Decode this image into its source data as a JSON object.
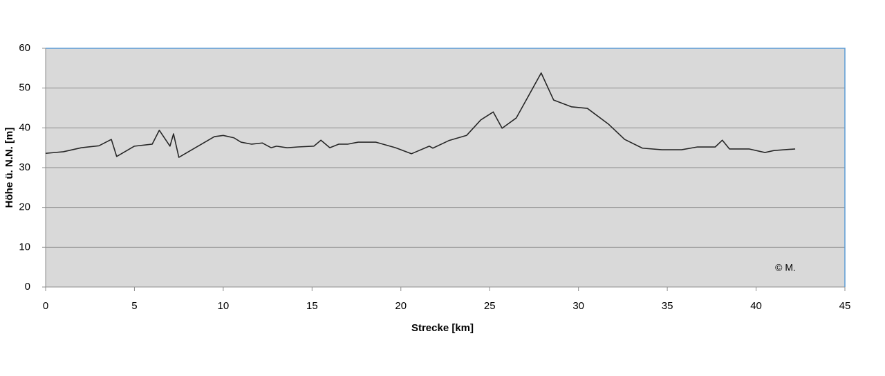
{
  "chart_data": {
    "type": "line",
    "xlabel": "Strecke [km]",
    "ylabel": "Höhe ü. N.N. [m]",
    "annotation": "© M.",
    "x": [
      0,
      1.0,
      2.0,
      3.0,
      3.7,
      4.0,
      5.0,
      6.0,
      6.4,
      7.0,
      7.2,
      7.5,
      9.5,
      10.0,
      10.6,
      11.0,
      11.6,
      12.2,
      12.7,
      13.0,
      13.6,
      14.2,
      15.1,
      15.5,
      16.0,
      16.5,
      17.0,
      17.6,
      18.6,
      19.7,
      20.6,
      21.6,
      21.8,
      22.7,
      23.7,
      24.5,
      25.2,
      25.7,
      26.5,
      27.9,
      28.6,
      29.6,
      30.5,
      31.7,
      32.6,
      33.6,
      34.7,
      35.8,
      36.7,
      37.7,
      38.1,
      38.5,
      39.6,
      40.5,
      41.0,
      42.2
    ],
    "series": [
      {
        "name": "Höhe",
        "color": "#262626",
        "values": [
          33.6,
          34.0,
          35.0,
          35.5,
          37.1,
          32.8,
          35.4,
          35.9,
          39.4,
          35.4,
          38.5,
          32.6,
          37.8,
          38.1,
          37.5,
          36.4,
          35.9,
          36.2,
          35.0,
          35.4,
          35.0,
          35.2,
          35.4,
          36.9,
          35.0,
          35.9,
          35.9,
          36.4,
          36.4,
          35.0,
          33.5,
          35.4,
          34.9,
          36.8,
          38.1,
          42.0,
          44.0,
          39.9,
          42.5,
          53.8,
          47.0,
          45.3,
          44.9,
          40.9,
          37.1,
          34.9,
          34.5,
          34.5,
          35.2,
          35.2,
          36.9,
          34.7,
          34.7,
          33.8,
          34.3,
          34.7
        ]
      }
    ],
    "xlim": [
      0,
      45
    ],
    "xticks": [
      0,
      5,
      10,
      15,
      20,
      25,
      30,
      35,
      40,
      45
    ],
    "ylim": [
      0,
      60
    ],
    "yticks": [
      0,
      10,
      20,
      30,
      40,
      50,
      60
    ],
    "grid": true
  }
}
